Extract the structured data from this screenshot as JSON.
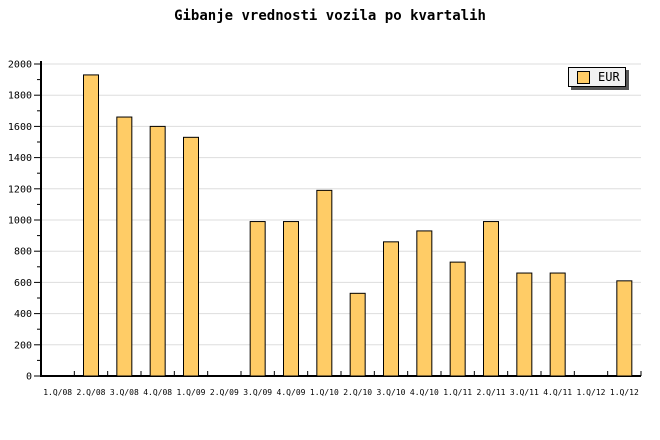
{
  "chart_data": {
    "type": "bar",
    "title": "Gibanje vrednosti vozila po kvartalih",
    "categories": [
      "1.Q/08",
      "2.Q/08",
      "3.Q/08",
      "4.Q/08",
      "1.Q/09",
      "2.Q/09",
      "3.Q/09",
      "4.Q/09",
      "1.Q/10",
      "2.Q/10",
      "3.Q/10",
      "4.Q/10",
      "1.Q/11",
      "2.Q/11",
      "3.Q/11",
      "4.Q/11",
      "1.Q/12",
      "1.Q/12"
    ],
    "series": [
      {
        "name": "EUR",
        "values": [
          null,
          1930,
          1660,
          1600,
          1530,
          null,
          990,
          990,
          1190,
          530,
          860,
          930,
          730,
          990,
          660,
          660,
          null,
          610
        ]
      }
    ],
    "xlabel": "",
    "ylabel": "",
    "ylim": [
      0,
      2000
    ],
    "ytick_step": 200,
    "ytick_minor_step": 100,
    "ytick_labels": [
      "0",
      "200",
      "400",
      "600",
      "800",
      "1000",
      "1200",
      "1400",
      "1600",
      "1800",
      "2000"
    ],
    "grid": "horizontal-major-only",
    "legend": {
      "label": "EUR",
      "position": "top-right"
    },
    "colors": {
      "bar_fill": "#FFCC66",
      "bar_border": "#000000",
      "gridline": "#DDDDDD",
      "axis": "#000000",
      "text": "#000000",
      "background": "#FFFFFF",
      "legend_background": "#F2F2F2",
      "legend_shadow": "#555555"
    }
  }
}
